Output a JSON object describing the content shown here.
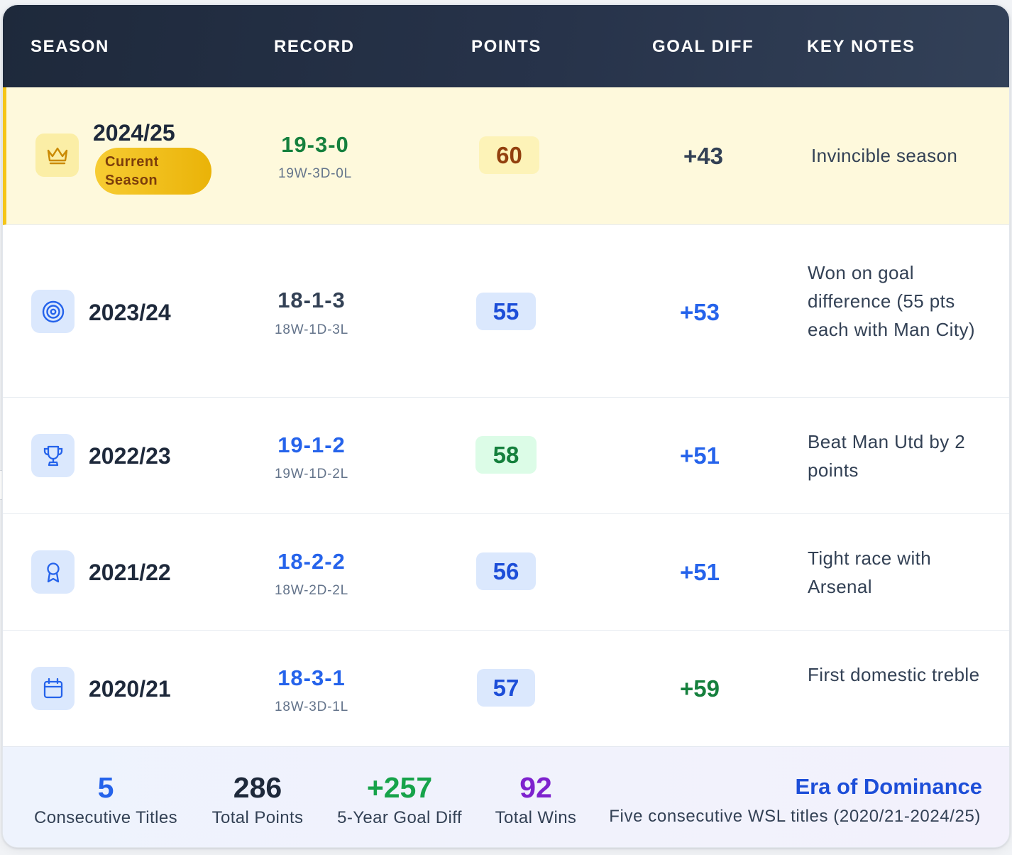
{
  "header": {
    "season": "SEASON",
    "record": "RECORD",
    "points": "POINTS",
    "goal_diff": "GOAL DIFF",
    "key_notes": "KEY NOTES"
  },
  "rows": [
    {
      "season": "2024/25",
      "badge": [
        "Current",
        "Season"
      ],
      "icon": "crown-icon",
      "record": "19-3-0",
      "record_detail": "19W-3D-0L",
      "points": "60",
      "goal_diff": "+43",
      "notes": "Invincible season"
    },
    {
      "season": "2023/24",
      "icon": "target-icon",
      "record": "18-1-3",
      "record_detail": "18W-1D-3L",
      "points": "55",
      "goal_diff": "+53",
      "notes": "Won on goal difference (55 pts each with Man City)"
    },
    {
      "season": "2022/23",
      "icon": "trophy-icon",
      "record": "19-1-2",
      "record_detail": "19W-1D-2L",
      "points": "58",
      "goal_diff": "+51",
      "notes": "Beat Man Utd by 2 points"
    },
    {
      "season": "2021/22",
      "icon": "award-ribbon-icon",
      "record": "18-2-2",
      "record_detail": "18W-2D-2L",
      "points": "56",
      "goal_diff": "+51",
      "notes": "Tight race with Arsenal"
    },
    {
      "season": "2020/21",
      "icon": "calendar-icon",
      "record": "18-3-1",
      "record_detail": "18W-3D-1L",
      "points": "57",
      "goal_diff": "+59",
      "notes": "First domestic treble"
    }
  ],
  "footer": {
    "stats": [
      {
        "value": "5",
        "label": "Consecutive Titles"
      },
      {
        "value": "286",
        "label": "Total Points"
      },
      {
        "value": "+257",
        "label": "5-Year Goal Diff"
      },
      {
        "value": "92",
        "label": "Total Wins"
      }
    ],
    "era_title": "Era of Dominance",
    "era_subtitle": "Five consecutive WSL titles (2020/21-2024/25)"
  },
  "colors": {
    "header_bg": "#1e293b",
    "current_row_bg": "#fef9dc",
    "current_accent": "#f5c518",
    "blue": "#1d4ed8",
    "green": "#15803d",
    "purple": "#7e22ce",
    "gold_text": "#92400e"
  }
}
